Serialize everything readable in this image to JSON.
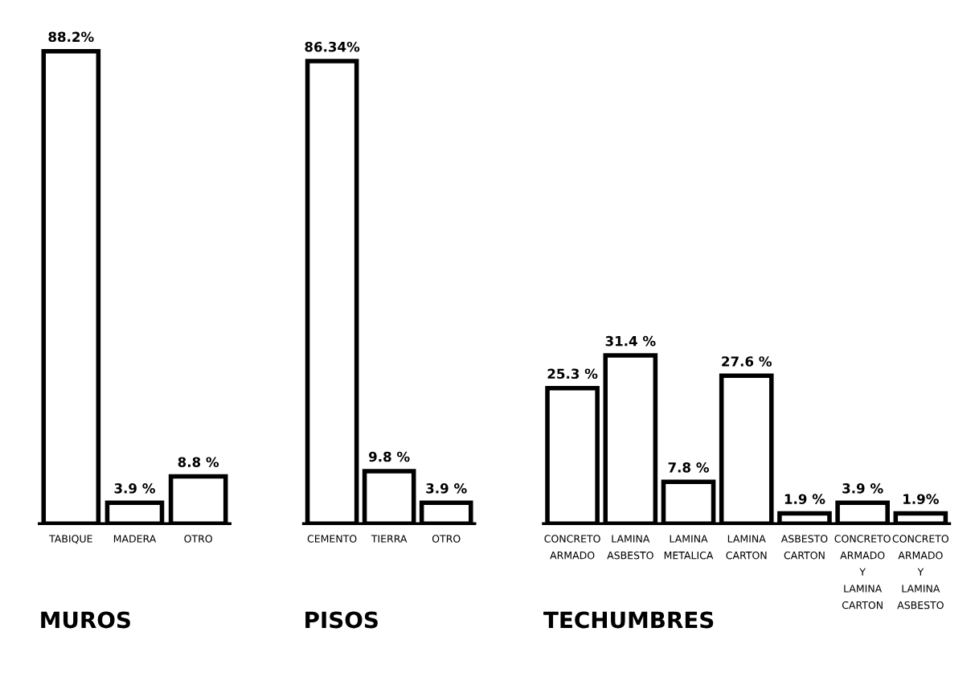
{
  "chart_data": [
    {
      "type": "bar",
      "title": "MUROS",
      "categories": [
        "TABIQUE",
        "MADERA",
        "OTRO"
      ],
      "values": [
        88.2,
        3.9,
        8.8
      ],
      "value_labels": [
        "88.2%",
        "3.9 %",
        "8.8 %"
      ],
      "color": "#ffffff"
    },
    {
      "type": "bar",
      "title": "PISOS",
      "categories": [
        "CEMENTO",
        "TIERRA",
        "OTRO"
      ],
      "values": [
        86.34,
        9.8,
        3.9
      ],
      "value_labels": [
        "86.34%",
        "9.8 %",
        "3.9 %"
      ],
      "color": "#ffffff"
    },
    {
      "type": "bar",
      "title": "TECHUMBRES",
      "categories": [
        "CONCRETO\nARMADO",
        "LAMINA\nASBESTO",
        "LAMINA\nMETALICA",
        "LAMINA\nCARTON",
        "ASBESTO\nCARTON",
        "CONCRETO\nARMADO\nY\nLAMINA\nCARTON",
        "CONCRETO\nARMADO\nY\nLAMINA\nASBESTO"
      ],
      "values": [
        25.3,
        31.4,
        7.8,
        27.6,
        1.9,
        3.9,
        1.9
      ],
      "value_labels": [
        "25.3 %",
        "31.4 %",
        "7.8 %",
        "27.6 %",
        "1.9 %",
        "3.9 %",
        "1.9%"
      ],
      "color": "#ffffff"
    }
  ]
}
